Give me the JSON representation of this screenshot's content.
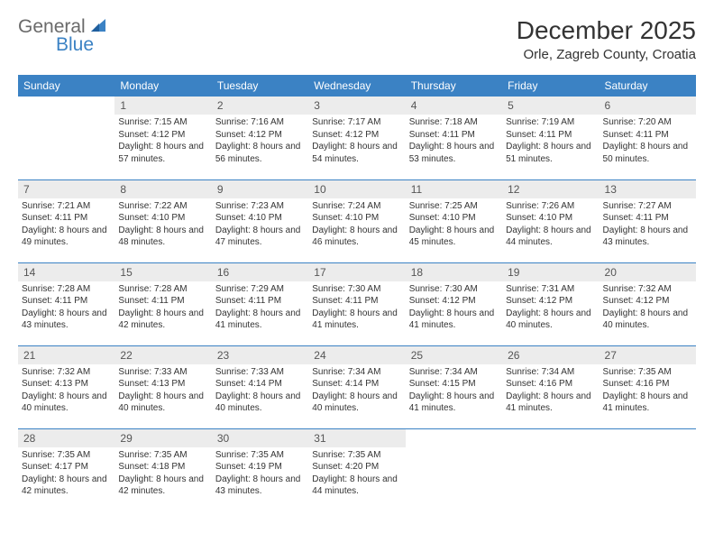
{
  "brand": {
    "word1": "General",
    "word2": "Blue"
  },
  "header": {
    "month_title": "December 2025",
    "location": "Orle, Zagreb County, Croatia"
  },
  "colors": {
    "header_bg": "#3b82c4",
    "header_text": "#ffffff",
    "daynum_bg": "#ececec",
    "row_border": "#3b82c4",
    "logo_gray": "#6a6a6a",
    "logo_blue": "#3b82c4"
  },
  "day_headers": [
    "Sunday",
    "Monday",
    "Tuesday",
    "Wednesday",
    "Thursday",
    "Friday",
    "Saturday"
  ],
  "weeks": [
    [
      {
        "n": "",
        "t": ""
      },
      {
        "n": "1",
        "t": "Sunrise: 7:15 AM\nSunset: 4:12 PM\nDaylight: 8 hours and 57 minutes."
      },
      {
        "n": "2",
        "t": "Sunrise: 7:16 AM\nSunset: 4:12 PM\nDaylight: 8 hours and 56 minutes."
      },
      {
        "n": "3",
        "t": "Sunrise: 7:17 AM\nSunset: 4:12 PM\nDaylight: 8 hours and 54 minutes."
      },
      {
        "n": "4",
        "t": "Sunrise: 7:18 AM\nSunset: 4:11 PM\nDaylight: 8 hours and 53 minutes."
      },
      {
        "n": "5",
        "t": "Sunrise: 7:19 AM\nSunset: 4:11 PM\nDaylight: 8 hours and 51 minutes."
      },
      {
        "n": "6",
        "t": "Sunrise: 7:20 AM\nSunset: 4:11 PM\nDaylight: 8 hours and 50 minutes."
      }
    ],
    [
      {
        "n": "7",
        "t": "Sunrise: 7:21 AM\nSunset: 4:11 PM\nDaylight: 8 hours and 49 minutes."
      },
      {
        "n": "8",
        "t": "Sunrise: 7:22 AM\nSunset: 4:10 PM\nDaylight: 8 hours and 48 minutes."
      },
      {
        "n": "9",
        "t": "Sunrise: 7:23 AM\nSunset: 4:10 PM\nDaylight: 8 hours and 47 minutes."
      },
      {
        "n": "10",
        "t": "Sunrise: 7:24 AM\nSunset: 4:10 PM\nDaylight: 8 hours and 46 minutes."
      },
      {
        "n": "11",
        "t": "Sunrise: 7:25 AM\nSunset: 4:10 PM\nDaylight: 8 hours and 45 minutes."
      },
      {
        "n": "12",
        "t": "Sunrise: 7:26 AM\nSunset: 4:10 PM\nDaylight: 8 hours and 44 minutes."
      },
      {
        "n": "13",
        "t": "Sunrise: 7:27 AM\nSunset: 4:11 PM\nDaylight: 8 hours and 43 minutes."
      }
    ],
    [
      {
        "n": "14",
        "t": "Sunrise: 7:28 AM\nSunset: 4:11 PM\nDaylight: 8 hours and 43 minutes."
      },
      {
        "n": "15",
        "t": "Sunrise: 7:28 AM\nSunset: 4:11 PM\nDaylight: 8 hours and 42 minutes."
      },
      {
        "n": "16",
        "t": "Sunrise: 7:29 AM\nSunset: 4:11 PM\nDaylight: 8 hours and 41 minutes."
      },
      {
        "n": "17",
        "t": "Sunrise: 7:30 AM\nSunset: 4:11 PM\nDaylight: 8 hours and 41 minutes."
      },
      {
        "n": "18",
        "t": "Sunrise: 7:30 AM\nSunset: 4:12 PM\nDaylight: 8 hours and 41 minutes."
      },
      {
        "n": "19",
        "t": "Sunrise: 7:31 AM\nSunset: 4:12 PM\nDaylight: 8 hours and 40 minutes."
      },
      {
        "n": "20",
        "t": "Sunrise: 7:32 AM\nSunset: 4:12 PM\nDaylight: 8 hours and 40 minutes."
      }
    ],
    [
      {
        "n": "21",
        "t": "Sunrise: 7:32 AM\nSunset: 4:13 PM\nDaylight: 8 hours and 40 minutes."
      },
      {
        "n": "22",
        "t": "Sunrise: 7:33 AM\nSunset: 4:13 PM\nDaylight: 8 hours and 40 minutes."
      },
      {
        "n": "23",
        "t": "Sunrise: 7:33 AM\nSunset: 4:14 PM\nDaylight: 8 hours and 40 minutes."
      },
      {
        "n": "24",
        "t": "Sunrise: 7:34 AM\nSunset: 4:14 PM\nDaylight: 8 hours and 40 minutes."
      },
      {
        "n": "25",
        "t": "Sunrise: 7:34 AM\nSunset: 4:15 PM\nDaylight: 8 hours and 41 minutes."
      },
      {
        "n": "26",
        "t": "Sunrise: 7:34 AM\nSunset: 4:16 PM\nDaylight: 8 hours and 41 minutes."
      },
      {
        "n": "27",
        "t": "Sunrise: 7:35 AM\nSunset: 4:16 PM\nDaylight: 8 hours and 41 minutes."
      }
    ],
    [
      {
        "n": "28",
        "t": "Sunrise: 7:35 AM\nSunset: 4:17 PM\nDaylight: 8 hours and 42 minutes."
      },
      {
        "n": "29",
        "t": "Sunrise: 7:35 AM\nSunset: 4:18 PM\nDaylight: 8 hours and 42 minutes."
      },
      {
        "n": "30",
        "t": "Sunrise: 7:35 AM\nSunset: 4:19 PM\nDaylight: 8 hours and 43 minutes."
      },
      {
        "n": "31",
        "t": "Sunrise: 7:35 AM\nSunset: 4:20 PM\nDaylight: 8 hours and 44 minutes."
      },
      {
        "n": "",
        "t": ""
      },
      {
        "n": "",
        "t": ""
      },
      {
        "n": "",
        "t": ""
      }
    ]
  ]
}
